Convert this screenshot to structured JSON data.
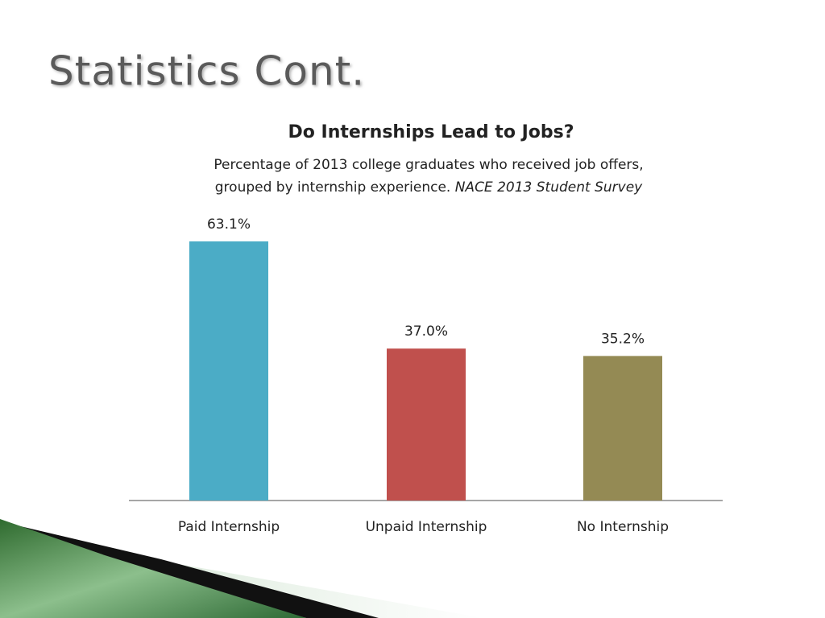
{
  "slide_title": "Statistics Cont.",
  "chart_data": {
    "type": "bar",
    "title": "Do Internships Lead to Jobs?",
    "subtitle": [
      "Percentage of 2013 college graduates who received job offers,",
      "grouped by internship experience."
    ],
    "source": "NACE 2013 Student Survey",
    "categories": [
      "Paid Internship",
      "Unpaid Internship",
      "No Internship"
    ],
    "values": [
      63.1,
      37.0,
      35.2
    ],
    "value_labels": [
      "63.1%",
      "37.0%",
      "35.2%"
    ],
    "colors": [
      "#4bacc6",
      "#c0504d",
      "#948a54"
    ]
  }
}
